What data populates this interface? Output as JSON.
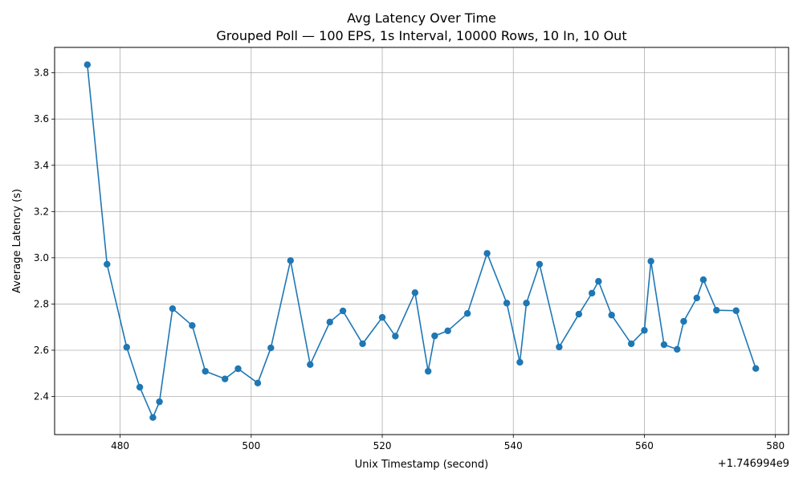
{
  "chart_data": {
    "type": "line",
    "title": "Avg Latency Over Time",
    "subtitle": "Grouped Poll — 100 EPS, 1s Interval, 10000 Rows, 10 In, 10 Out",
    "xlabel": "Unix Timestamp (second)",
    "ylabel": "Average Latency (s)",
    "x_offset_label": "+1.746994e9",
    "xlim": [
      470,
      582
    ],
    "ylim": [
      2.235,
      3.91
    ],
    "grid": true,
    "line_color": "#1f77b4",
    "x_ticks": [
      480,
      500,
      520,
      540,
      560,
      580
    ],
    "x_tick_labels": [
      "480",
      "500",
      "520",
      "540",
      "560",
      "580"
    ],
    "y_ticks": [
      2.4,
      2.6,
      2.8,
      3.0,
      3.2,
      3.4,
      3.6,
      3.8
    ],
    "y_tick_labels": [
      "2.4",
      "2.6",
      "2.8",
      "3.0",
      "3.2",
      "3.4",
      "3.6",
      "3.8"
    ],
    "series": [
      {
        "x": [
          475,
          478,
          481,
          483,
          485,
          486,
          488,
          491,
          493,
          496,
          498,
          501,
          503,
          506,
          509,
          512,
          514,
          517,
          520,
          522,
          525,
          527,
          528,
          530,
          533,
          536,
          539,
          541,
          542,
          544,
          547,
          550,
          552,
          553,
          555,
          558,
          560,
          561,
          563,
          565,
          566,
          568,
          569,
          571,
          574,
          577
        ],
        "y": [
          3.835,
          2.972,
          2.613,
          2.44,
          2.309,
          2.377,
          2.78,
          2.707,
          2.509,
          2.476,
          2.52,
          2.458,
          2.61,
          2.988,
          2.538,
          2.722,
          2.77,
          2.628,
          2.742,
          2.661,
          2.849,
          2.509,
          2.662,
          2.684,
          2.759,
          3.019,
          2.804,
          2.548,
          2.804,
          2.972,
          2.614,
          2.756,
          2.847,
          2.898,
          2.752,
          2.628,
          2.686,
          2.985,
          2.624,
          2.604,
          2.725,
          2.826,
          2.905,
          2.773,
          2.771,
          2.521
        ]
      }
    ]
  }
}
